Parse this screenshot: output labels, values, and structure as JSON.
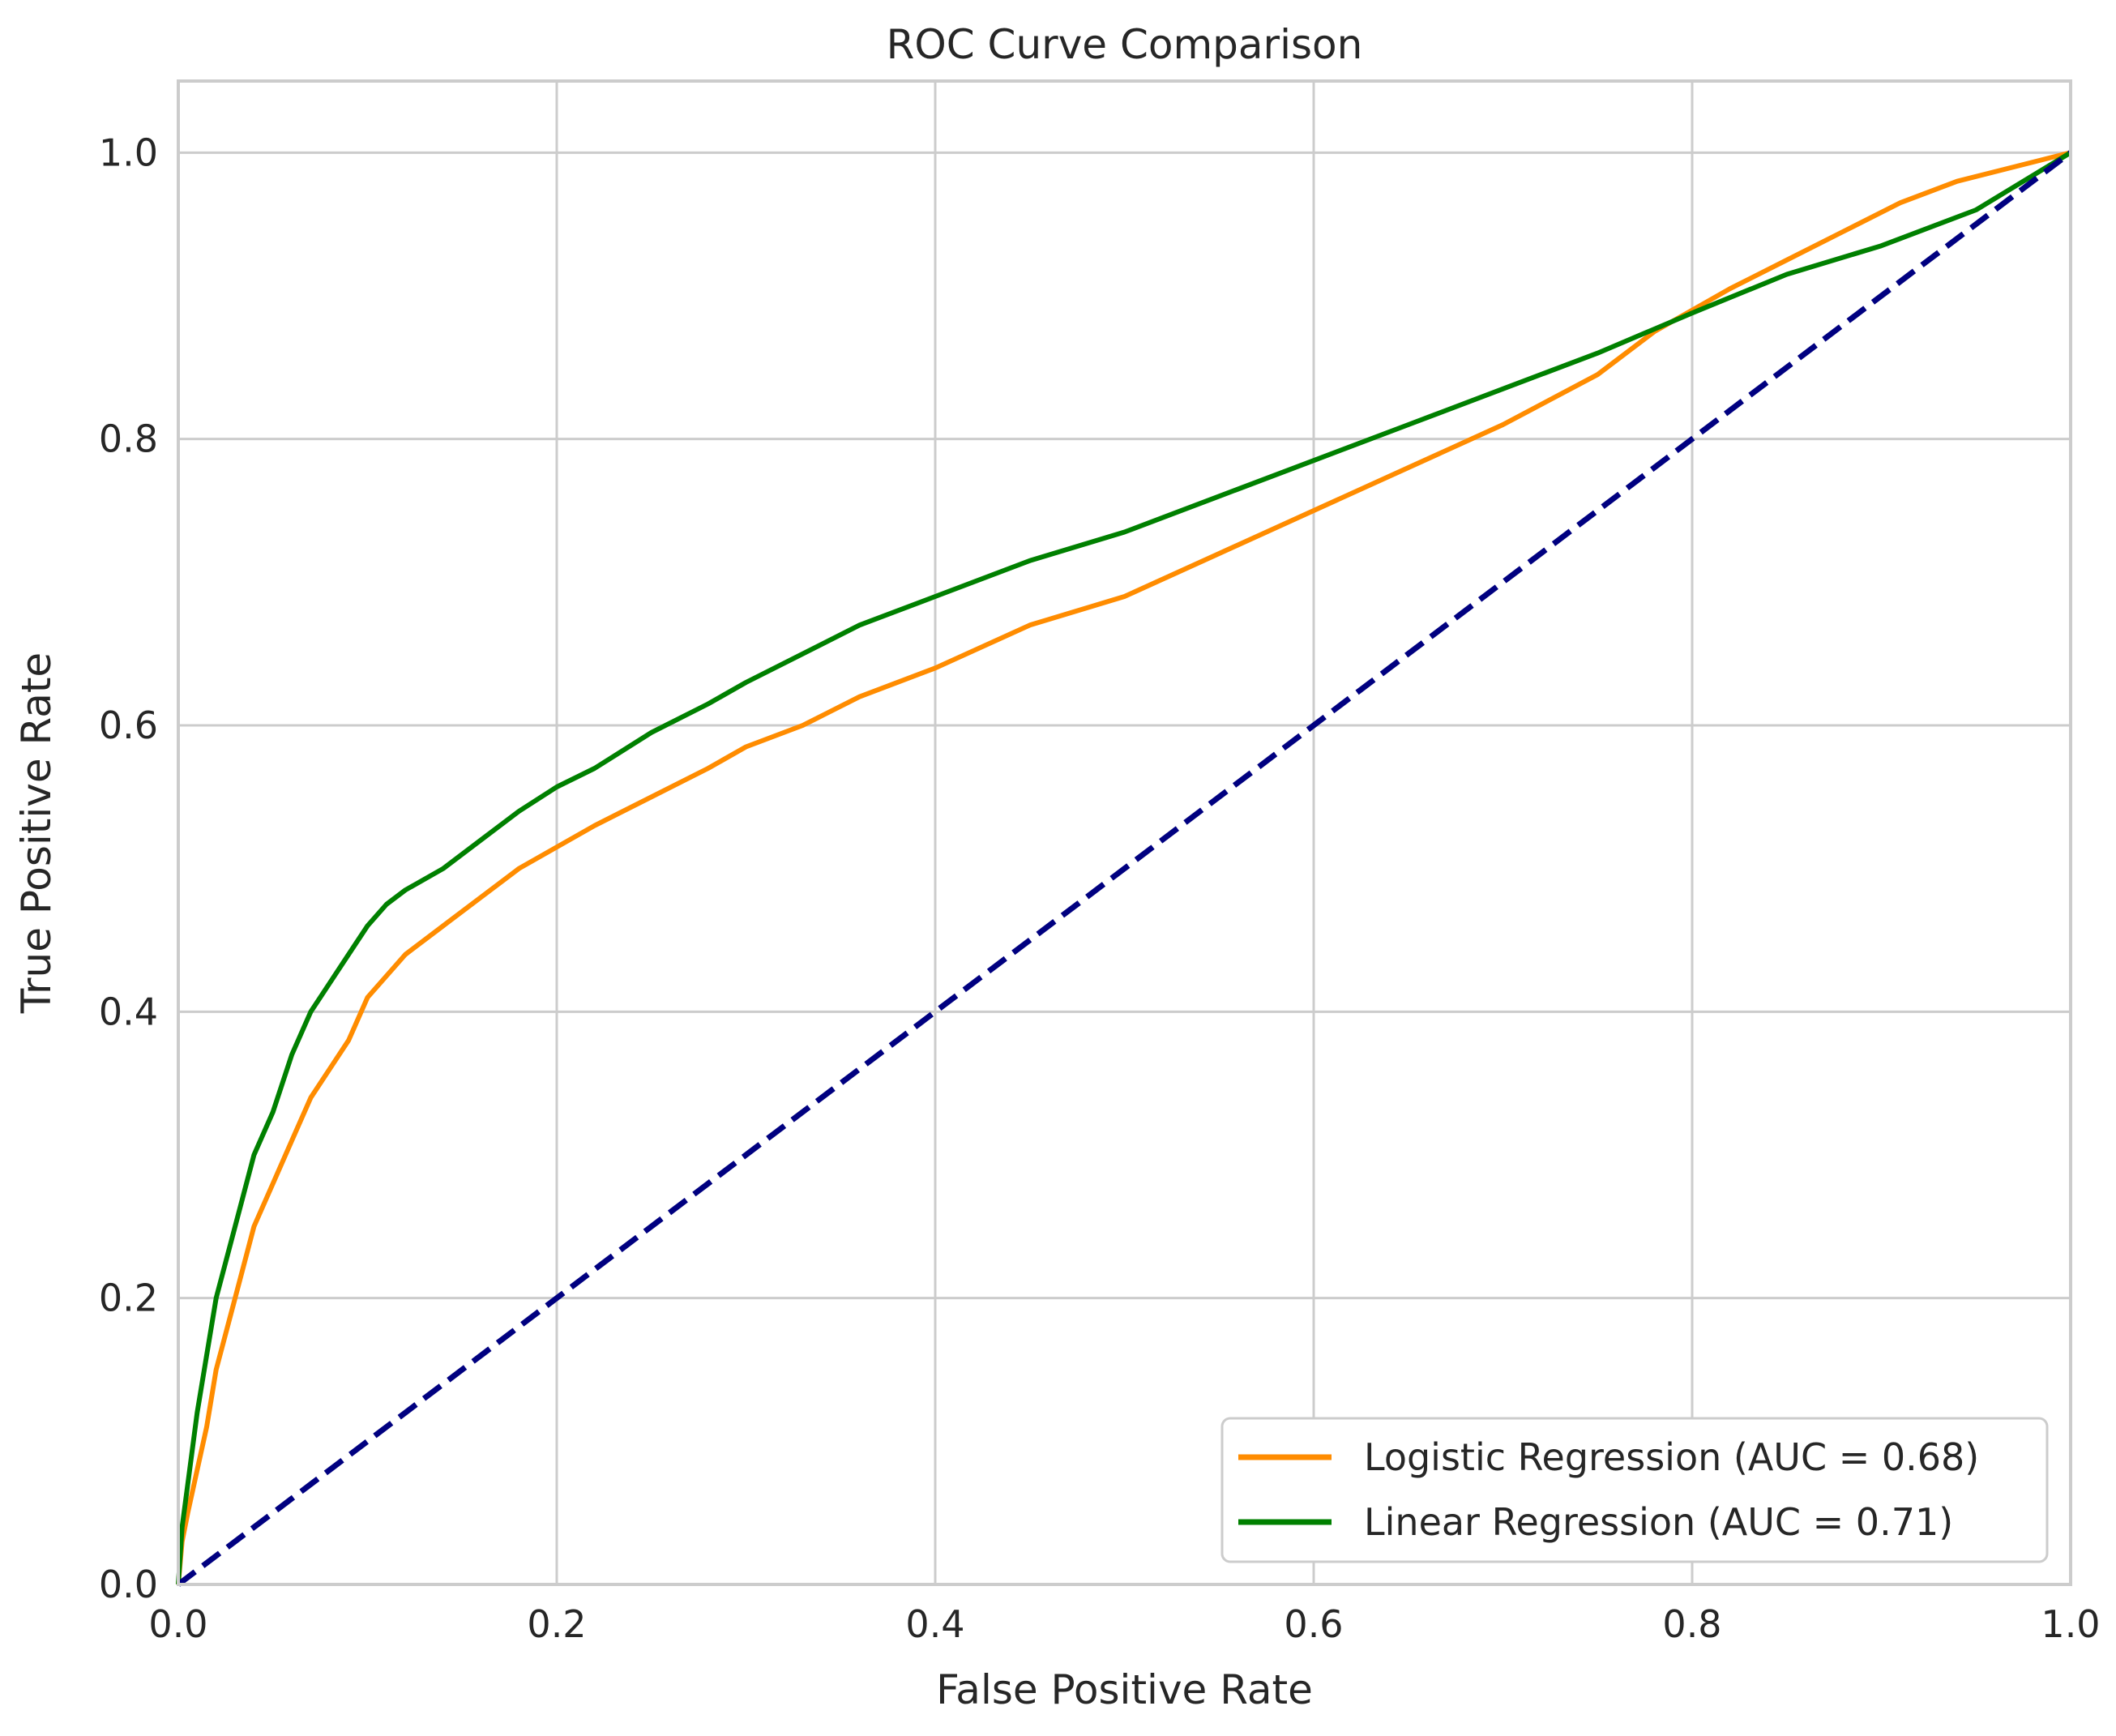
{
  "chart_data": {
    "type": "line",
    "title": "ROC Curve Comparison",
    "xlabel": "False Positive Rate",
    "ylabel": "True Positive Rate",
    "xlim": [
      0.0,
      1.0
    ],
    "ylim": [
      0.0,
      1.05
    ],
    "xticks": [
      0.0,
      0.2,
      0.4,
      0.6,
      0.8,
      1.0
    ],
    "yticks": [
      0.0,
      0.2,
      0.4,
      0.6,
      0.8,
      1.0
    ],
    "xtick_labels": [
      "0.0",
      "0.2",
      "0.4",
      "0.6",
      "0.8",
      "1.0"
    ],
    "ytick_labels": [
      "0.0",
      "0.2",
      "0.4",
      "0.6",
      "0.8",
      "1.0"
    ],
    "grid": true,
    "legend_position": "lower-right",
    "series": [
      {
        "name": "Logistic Regression (AUC = 0.68)",
        "color": "#ff8c00",
        "style": "solid",
        "points": [
          [
            0.0,
            0.0
          ],
          [
            0.002,
            0.03
          ],
          [
            0.005,
            0.05
          ],
          [
            0.01,
            0.08
          ],
          [
            0.015,
            0.11
          ],
          [
            0.02,
            0.15
          ],
          [
            0.03,
            0.2
          ],
          [
            0.04,
            0.25
          ],
          [
            0.05,
            0.28
          ],
          [
            0.06,
            0.31
          ],
          [
            0.07,
            0.34
          ],
          [
            0.08,
            0.36
          ],
          [
            0.09,
            0.38
          ],
          [
            0.1,
            0.41
          ],
          [
            0.12,
            0.44
          ],
          [
            0.14,
            0.46
          ],
          [
            0.16,
            0.48
          ],
          [
            0.18,
            0.5
          ],
          [
            0.2,
            0.515
          ],
          [
            0.22,
            0.53
          ],
          [
            0.25,
            0.55
          ],
          [
            0.28,
            0.57
          ],
          [
            0.3,
            0.585
          ],
          [
            0.33,
            0.6
          ],
          [
            0.36,
            0.62
          ],
          [
            0.4,
            0.64
          ],
          [
            0.45,
            0.67
          ],
          [
            0.5,
            0.69
          ],
          [
            0.55,
            0.72
          ],
          [
            0.6,
            0.75
          ],
          [
            0.65,
            0.78
          ],
          [
            0.7,
            0.81
          ],
          [
            0.75,
            0.845
          ],
          [
            0.78,
            0.875
          ],
          [
            0.8,
            0.89
          ],
          [
            0.82,
            0.905
          ],
          [
            0.85,
            0.925
          ],
          [
            0.88,
            0.945
          ],
          [
            0.91,
            0.965
          ],
          [
            0.94,
            0.98
          ],
          [
            0.97,
            0.99
          ],
          [
            1.0,
            1.0
          ]
        ]
      },
      {
        "name": "Linear Regression (AUC = 0.71)",
        "color": "#008000",
        "style": "solid",
        "points": [
          [
            0.0,
            0.0
          ],
          [
            0.002,
            0.04
          ],
          [
            0.005,
            0.07
          ],
          [
            0.01,
            0.12
          ],
          [
            0.015,
            0.16
          ],
          [
            0.02,
            0.2
          ],
          [
            0.03,
            0.25
          ],
          [
            0.04,
            0.3
          ],
          [
            0.05,
            0.33
          ],
          [
            0.06,
            0.37
          ],
          [
            0.07,
            0.4
          ],
          [
            0.08,
            0.42
          ],
          [
            0.09,
            0.44
          ],
          [
            0.1,
            0.46
          ],
          [
            0.11,
            0.475
          ],
          [
            0.12,
            0.485
          ],
          [
            0.14,
            0.5
          ],
          [
            0.16,
            0.52
          ],
          [
            0.18,
            0.54
          ],
          [
            0.2,
            0.557
          ],
          [
            0.22,
            0.57
          ],
          [
            0.25,
            0.595
          ],
          [
            0.28,
            0.615
          ],
          [
            0.3,
            0.63
          ],
          [
            0.33,
            0.65
          ],
          [
            0.36,
            0.67
          ],
          [
            0.4,
            0.69
          ],
          [
            0.45,
            0.715
          ],
          [
            0.5,
            0.735
          ],
          [
            0.55,
            0.76
          ],
          [
            0.6,
            0.785
          ],
          [
            0.65,
            0.81
          ],
          [
            0.7,
            0.835
          ],
          [
            0.75,
            0.86
          ],
          [
            0.8,
            0.888
          ],
          [
            0.85,
            0.915
          ],
          [
            0.9,
            0.935
          ],
          [
            0.95,
            0.96
          ],
          [
            1.0,
            1.0
          ]
        ]
      },
      {
        "name": "",
        "color": "#000080",
        "style": "dashed",
        "points": [
          [
            0.0,
            0.0
          ],
          [
            1.0,
            1.0
          ]
        ]
      }
    ]
  }
}
